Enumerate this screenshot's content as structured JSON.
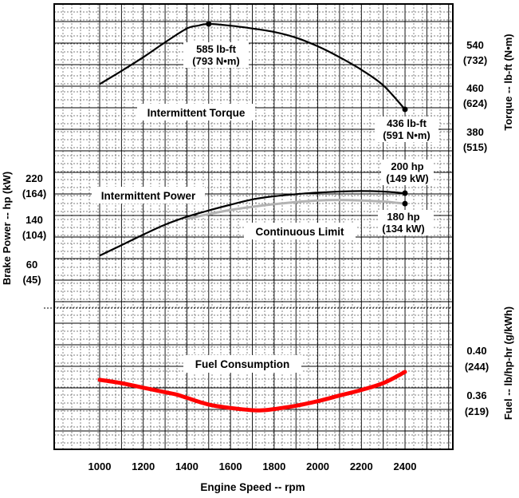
{
  "chart_data": {
    "type": "line",
    "xlabel": "Engine Speed -- rpm",
    "x_ticks": [
      "1000",
      "1200",
      "1400",
      "1600",
      "1800",
      "2000",
      "2200",
      "2400"
    ],
    "xlim": [
      800,
      2550
    ],
    "grid": true,
    "left_axis": {
      "label": "Brake Power -- hp (kW)",
      "ticks": [
        {
          "line1": "220",
          "line2": "(164)"
        },
        {
          "line1": "140",
          "line2": "(104)"
        },
        {
          "line1": "60",
          "line2": "(45)"
        }
      ]
    },
    "right_axis_torque": {
      "label": "Torque -- lb-ft (N•m)",
      "ticks": [
        {
          "line1": "540",
          "line2": "(732)"
        },
        {
          "line1": "460",
          "line2": "(624)"
        },
        {
          "line1": "380",
          "line2": "(515)"
        }
      ]
    },
    "right_axis_fuel": {
      "label": "Fuel -- lb/hp-hr (g/kWh)",
      "ticks": [
        {
          "line1": "0.40",
          "line2": "(244)"
        },
        {
          "line1": "0.36",
          "line2": "(219)"
        }
      ]
    },
    "series": [
      {
        "name": "Intermittent Torque",
        "color": "#000000",
        "x": [
          1000,
          1100,
          1200,
          1300,
          1400,
          1450,
          1500,
          1600,
          1700,
          1800,
          1900,
          2000,
          2100,
          2200,
          2300,
          2400
        ],
        "y": [
          480,
          503,
          527,
          553,
          577,
          582,
          585,
          582,
          577,
          571,
          561,
          546,
          527,
          505,
          478,
          436
        ]
      },
      {
        "name": "Intermittent Power",
        "color": "#000000",
        "x": [
          1000,
          1100,
          1200,
          1300,
          1400,
          1500,
          1600,
          1700,
          1800,
          1900,
          2000,
          2100,
          2200,
          2300,
          2400
        ],
        "y": [
          81,
          101,
          121,
          140,
          155,
          167,
          178,
          188,
          194,
          198,
          201,
          203,
          204,
          203,
          200
        ]
      },
      {
        "name": "Continuous Limit",
        "color": "#b3b3b3",
        "x": [
          1400,
          1500,
          1600,
          1700,
          1800,
          1900,
          2000,
          2100,
          2200,
          2300,
          2400
        ],
        "y": [
          151,
          160,
          168,
          174,
          179,
          183,
          186,
          187,
          186,
          184,
          180
        ]
      },
      {
        "name": "Fuel Consumption",
        "color": "#ff0000",
        "x": [
          1000,
          1100,
          1200,
          1300,
          1350,
          1400,
          1500,
          1600,
          1700,
          1750,
          1800,
          1900,
          2000,
          2100,
          2200,
          2300,
          2400
        ],
        "y": [
          0.389,
          0.386,
          0.382,
          0.378,
          0.376,
          0.373,
          0.367,
          0.364,
          0.362,
          0.362,
          0.363,
          0.366,
          0.37,
          0.375,
          0.38,
          0.386,
          0.396
        ]
      }
    ],
    "annotations": {
      "torque_peak": {
        "line1": "585 lb-ft",
        "line2": "(793 N•m)",
        "x": 1500,
        "y": 585
      },
      "torque_end": {
        "line1": "436 lb-ft",
        "line2": "(591 N•m)",
        "x": 2400,
        "y": 436
      },
      "power_end": {
        "line1": "200 hp",
        "line2": "(149 kW)",
        "x": 2400,
        "y": 200
      },
      "continuous_end": {
        "line1": "180 hp",
        "line2": "(134 kW)",
        "x": 2400,
        "y": 180
      }
    },
    "series_labels": {
      "torque": "Intermittent Torque",
      "power": "Intermittent Power",
      "continuous": "Continuous Limit",
      "fuel": "Fuel  Consumption"
    }
  }
}
